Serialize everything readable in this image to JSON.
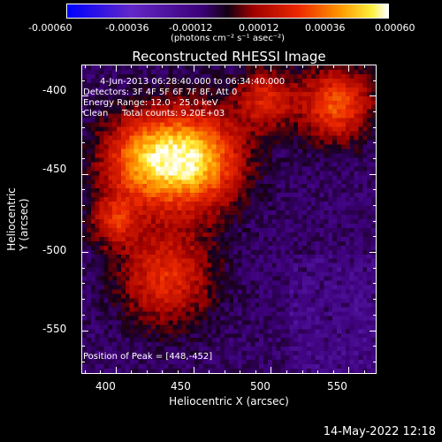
{
  "colorbar": {
    "ticks": [
      "-0.00060",
      "-0.00036",
      "-0.00012",
      "0.00012",
      "0.00036",
      "0.00060"
    ],
    "units": "(photons cm⁻² s⁻¹ asec⁻²)"
  },
  "plot": {
    "title": "Reconstructed RHESSI Image",
    "xlabel": "Heliocentric X (arcsec)",
    "ylabel": "Heliocentric Y (arcsec)",
    "xticks": [
      "400",
      "450",
      "500",
      "550"
    ],
    "yticks": [
      "-400",
      "-450",
      "-500",
      "-550"
    ],
    "xlim": [
      378,
      568
    ],
    "ylim": [
      -578,
      -380
    ],
    "annotations": {
      "time_range": "4-Jun-2013 06:28:40.000 to 06:34:40.000",
      "detectors": "Detectors: 3F 4F 5F 6F 7F 8F, Att 0",
      "energy_range": "Energy Range: 12.0 - 25.0 keV",
      "method": "Clean",
      "total_counts": "Total counts: 9.20E+03",
      "peak": "Position of Peak = [448,-452]"
    }
  },
  "footer": {
    "timestamp": "14-May-2022 12:18"
  },
  "colors": {
    "background": "#000000",
    "text": "#ffffff"
  }
}
